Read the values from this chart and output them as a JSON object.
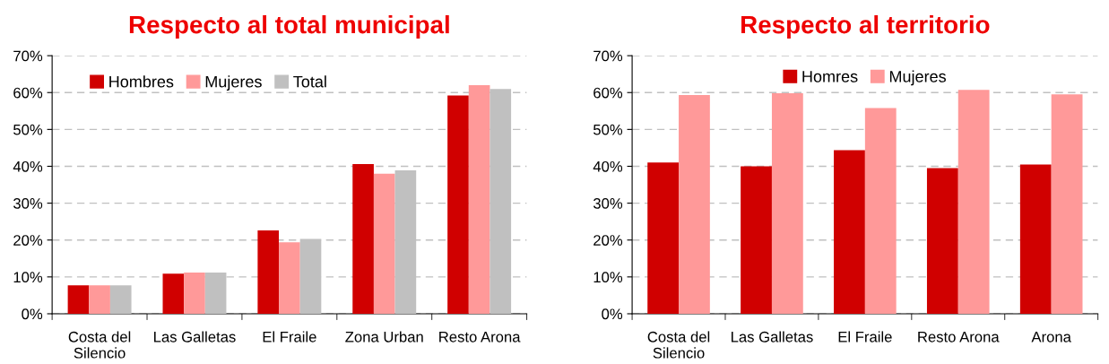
{
  "chart_data": [
    {
      "type": "bar",
      "title": "Respecto al total municipal",
      "categories": [
        "Costa del Silencio",
        "Las Galletas",
        "El Fraile",
        "Zona Urban",
        "Resto Arona"
      ],
      "series": [
        {
          "name": "Hombres",
          "color": "#d00000",
          "values": [
            7.7,
            10.9,
            22.6,
            40.6,
            59.2
          ]
        },
        {
          "name": "Mujeres",
          "color": "#ff9999",
          "values": [
            7.7,
            11.2,
            19.4,
            38.0,
            62.0
          ]
        },
        {
          "name": "Total",
          "color": "#c0c0c0",
          "values": [
            7.7,
            11.2,
            20.3,
            38.9,
            61.0
          ]
        }
      ],
      "ylim": [
        0,
        70
      ],
      "yticks": [
        {
          "value": 0,
          "label": "0%"
        },
        {
          "value": 10,
          "label": "10%"
        },
        {
          "value": 20,
          "label": "20%"
        },
        {
          "value": 30,
          "label": "30%"
        },
        {
          "value": 40,
          "label": "40%"
        },
        {
          "value": 50,
          "label": "50%"
        },
        {
          "value": 60,
          "label": "60%"
        },
        {
          "value": 70,
          "label": "70%"
        }
      ],
      "grid": "y",
      "legend": "top left"
    },
    {
      "type": "bar",
      "title": "Respecto al territorio",
      "categories": [
        "Costa del Silencio",
        "Las Galletas",
        "El Fraile",
        "Resto Arona",
        "Arona"
      ],
      "series": [
        {
          "name": "Homres",
          "color": "#d00000",
          "values": [
            41.0,
            40.0,
            44.4,
            39.5,
            40.5
          ]
        },
        {
          "name": "Mujeres",
          "color": "#ff9999",
          "values": [
            59.3,
            59.8,
            55.8,
            60.7,
            59.5
          ]
        }
      ],
      "ylim": [
        0,
        70
      ],
      "yticks": [
        {
          "value": 0,
          "label": "0%"
        },
        {
          "value": 10,
          "label": "10%"
        },
        {
          "value": 20,
          "label": "20%"
        },
        {
          "value": 30,
          "label": "30%"
        },
        {
          "value": 40,
          "label": "40%"
        },
        {
          "value": 50,
          "label": "50%"
        },
        {
          "value": 60,
          "label": "60%"
        },
        {
          "value": 70,
          "label": "70%"
        }
      ],
      "grid": "y",
      "legend": "top"
    }
  ]
}
